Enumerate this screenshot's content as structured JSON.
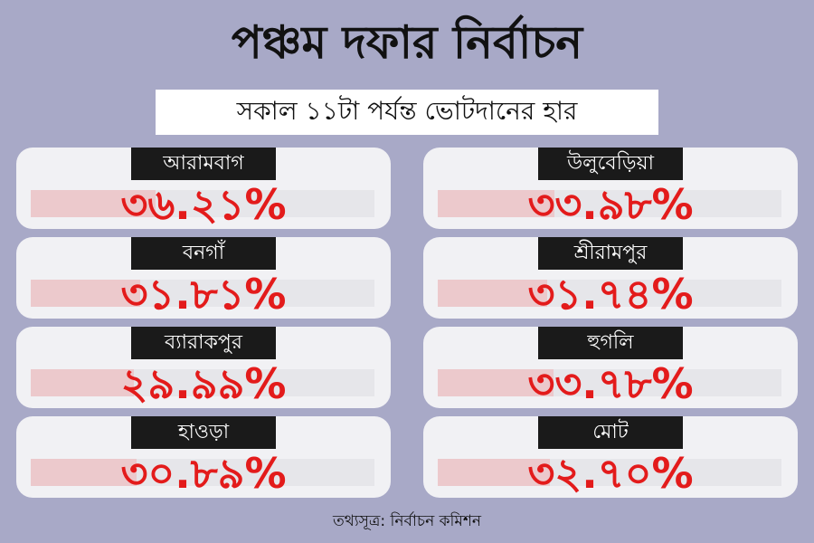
{
  "title": "পঞ্চম দফার নির্বাচন",
  "subtitle": "সকাল ১১টা পর্যন্ত ভোটদানের হার",
  "colors": {
    "background": "#a8a9c7",
    "value": "#e31b1b",
    "label_bg": "#1a1a1a",
    "bar_fill": "#ecc9cc"
  },
  "cards": [
    {
      "name": "আরামবাগ",
      "value": "৩৬.২১%",
      "percent": 36.21
    },
    {
      "name": "উলুবেড়িয়া",
      "value": "৩৩.৯৮%",
      "percent": 33.98
    },
    {
      "name": "বনগাঁ",
      "value": "৩১.৮১%",
      "percent": 31.81
    },
    {
      "name": "শ্রীরামপুর",
      "value": "৩১.৭৪%",
      "percent": 31.74
    },
    {
      "name": "ব্যারাকপুর",
      "value": "২৯.৯৯%",
      "percent": 29.99
    },
    {
      "name": "হুগলি",
      "value": "৩৩.৭৮%",
      "percent": 33.78
    },
    {
      "name": "হাওড়া",
      "value": "৩০.৮৯%",
      "percent": 30.89
    },
    {
      "name": "মোট",
      "value": "৩২.৭০%",
      "percent": 32.7
    }
  ],
  "source": "তথ্যসূত্র: নির্বাচন কমিশন"
}
